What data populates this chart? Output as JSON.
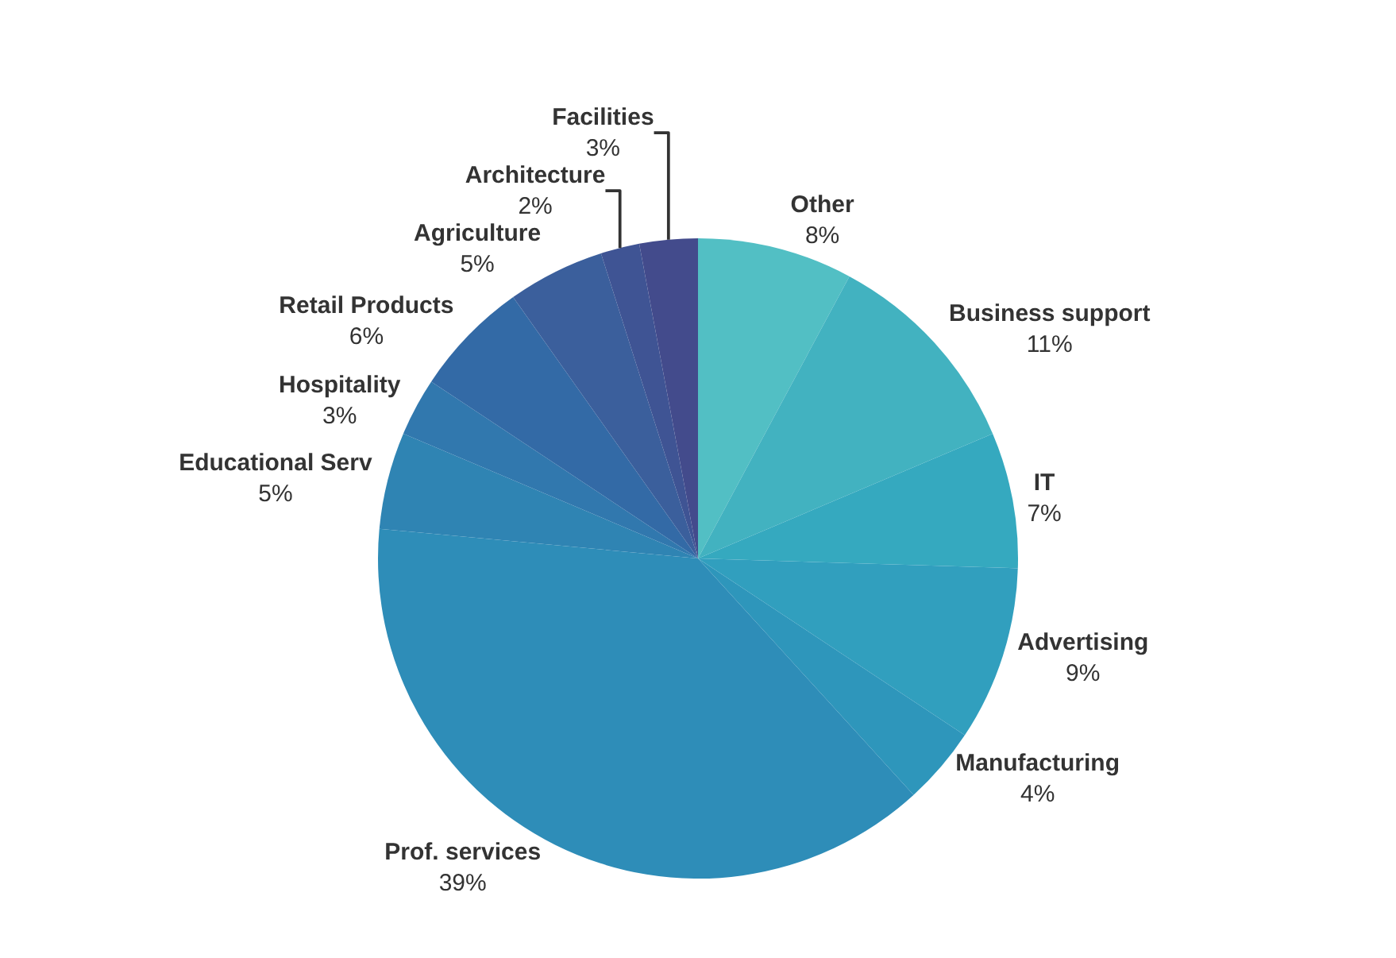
{
  "chart_data": {
    "type": "pie",
    "categories": [
      "Other",
      "Business support",
      "IT",
      "Advertising",
      "Manufacturing",
      "Prof. services",
      "Educational Serv",
      "Hospitality",
      "Retail Products",
      "Agriculture",
      "Architecture",
      "Facilities"
    ],
    "values": [
      8,
      11,
      7,
      9,
      4,
      39,
      5,
      3,
      6,
      5,
      2,
      3
    ],
    "value_labels": [
      "8%",
      "11%",
      "7%",
      "9%",
      "4%",
      "39%",
      "5%",
      "3%",
      "6%",
      "5%",
      "2%",
      "3%"
    ],
    "colors": [
      "#52bfc4",
      "#42b2c0",
      "#35a9bf",
      "#319fbe",
      "#2e96bb",
      "#2e8db8",
      "#2f84b3",
      "#3178ae",
      "#336aa6",
      "#3b5f9c",
      "#3f5494",
      "#434b8c"
    ],
    "legend": false
  }
}
